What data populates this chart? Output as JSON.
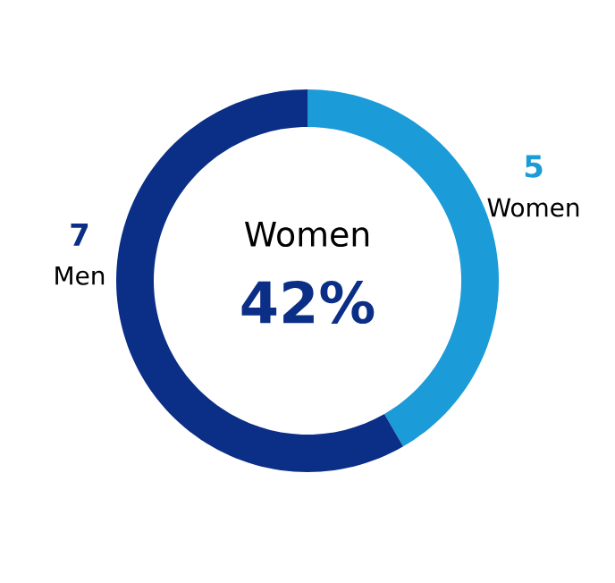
{
  "chart_data": {
    "type": "donut",
    "categories": [
      "Women",
      "Men"
    ],
    "values": [
      5,
      7
    ],
    "colors": [
      "#1b9bd7",
      "#0b2f86"
    ],
    "value_labels": [
      "5",
      "7"
    ],
    "annotations": [
      "Women",
      "42%"
    ]
  }
}
